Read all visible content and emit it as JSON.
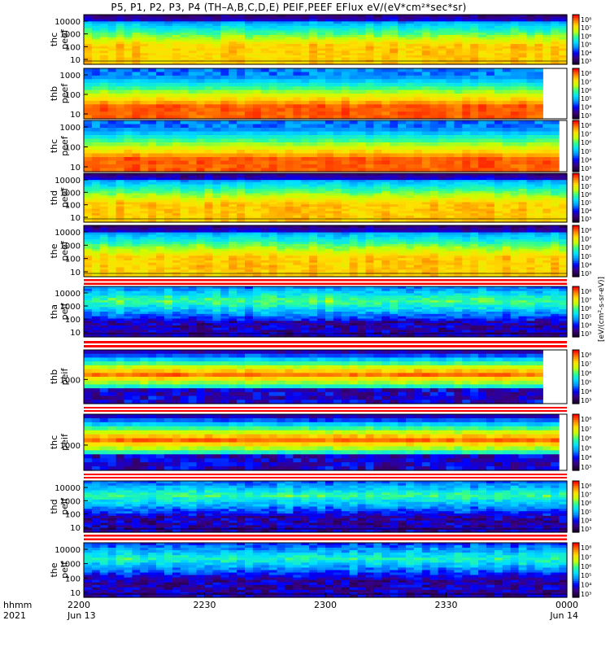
{
  "title": "P5, P1, P2, P3, P4 (TH–A,B,C,D,E) PEIF,PEEF EFlux eV/(eV*cm²*sec*sr)",
  "xaxis": {
    "row1_label": "hhmm",
    "row2_label": "2021",
    "ticks": [
      {
        "value": "2200",
        "sub": "Jun 13"
      },
      {
        "value": "2230",
        "sub": ""
      },
      {
        "value": "2300",
        "sub": ""
      },
      {
        "value": "2330",
        "sub": ""
      },
      {
        "value": "0000",
        "sub": "Jun 14"
      }
    ]
  },
  "colorbar_units": "[eV/(cm²-s-sr-eV)]",
  "colors": {
    "scale": [
      "#1a0033",
      "#3a0080",
      "#0000ff",
      "#0090ff",
      "#00e0ff",
      "#30ff90",
      "#c8ff00",
      "#ffe000",
      "#ff8000",
      "#ff0000"
    ],
    "fill_line": "#ff0000"
  },
  "chart_data": [
    {
      "type": "heatmap",
      "probe": "thc",
      "species": "peef",
      "ylabel": [
        "thc",
        "peef"
      ],
      "yticks": [
        "10000",
        "1000",
        "100",
        "10"
      ],
      "cbar_ticks": [
        "10⁸",
        "10⁷",
        "10⁶",
        "10⁵",
        "10⁴",
        "10³"
      ],
      "trend": "electron",
      "level": 0.88
    },
    {
      "type": "heatmap",
      "probe": "thb",
      "species": "peef",
      "ylabel": [
        "thb",
        "peef"
      ],
      "yticks": [
        "1000",
        "100",
        "10"
      ],
      "cbar_ticks": [
        "10⁸",
        "10⁷",
        "10⁶",
        "10⁵",
        "10⁴",
        "10³"
      ],
      "trend": "banded-e",
      "level": 0.92
    },
    {
      "type": "heatmap",
      "probe": "thc",
      "species": "peef",
      "ylabel": [
        "thc",
        "peef"
      ],
      "yticks": [
        "1000",
        "100",
        "10"
      ],
      "cbar_ticks": [
        "10⁸",
        "10⁷",
        "10⁶",
        "10⁵",
        "10⁴",
        "10³"
      ],
      "trend": "banded-e",
      "level": 0.88
    },
    {
      "type": "heatmap",
      "probe": "thd",
      "species": "peef",
      "ylabel": [
        "thd",
        "peef"
      ],
      "yticks": [
        "10000",
        "1000",
        "100",
        "10"
      ],
      "cbar_ticks": [
        "10⁸",
        "10⁷",
        "10⁶",
        "10⁵",
        "10⁴",
        "10³"
      ],
      "trend": "electron",
      "level": 0.85
    },
    {
      "type": "heatmap",
      "probe": "the",
      "species": "peef",
      "ylabel": [
        "the",
        "peef"
      ],
      "yticks": [
        "10000",
        "1000",
        "100",
        "10"
      ],
      "cbar_ticks": [
        "10⁸",
        "10⁷",
        "10⁶",
        "10⁵",
        "10⁴",
        "10³"
      ],
      "trend": "electron",
      "level": 0.83
    },
    {
      "type": "heatmap",
      "probe": "tha",
      "species": "peif",
      "ylabel": [
        "tha",
        "peif"
      ],
      "yticks": [
        "10000",
        "1000",
        "100",
        "10"
      ],
      "cbar_ticks": [
        "10⁸",
        "10⁷",
        "10⁶",
        "10⁵",
        "10⁴",
        "10³"
      ],
      "trend": "ion",
      "level": 0.58
    },
    {
      "type": "heatmap",
      "probe": "thb",
      "species": "peif",
      "ylabel": [
        "thb",
        "peif"
      ],
      "yticks": [
        "1000"
      ],
      "cbar_ticks": [
        "10⁸",
        "10⁷",
        "10⁶",
        "10⁵",
        "10⁴",
        "10³"
      ],
      "trend": "banded-i",
      "level": 0.75
    },
    {
      "type": "heatmap",
      "probe": "thc",
      "species": "peif",
      "ylabel": [
        "thc",
        "peif"
      ],
      "yticks": [
        "1000"
      ],
      "cbar_ticks": [
        "10⁸",
        "10⁷",
        "10⁶",
        "10⁵",
        "10⁴",
        "10³"
      ],
      "trend": "banded-i",
      "level": 0.72
    },
    {
      "type": "heatmap",
      "probe": "thd",
      "species": "peif",
      "ylabel": [
        "thd",
        "peif"
      ],
      "yticks": [
        "10000",
        "1000",
        "100",
        "10"
      ],
      "cbar_ticks": [
        "10⁸",
        "10⁷",
        "10⁶",
        "10⁵",
        "10⁴",
        "10³"
      ],
      "trend": "ion",
      "level": 0.55
    },
    {
      "type": "heatmap",
      "probe": "the",
      "species": "peif",
      "ylabel": [
        "the",
        "peif"
      ],
      "yticks": [
        "10000",
        "1000",
        "100",
        "10"
      ],
      "cbar_ticks": [
        "10⁸",
        "10⁷",
        "10⁶",
        "10⁵",
        "10⁴",
        "10³"
      ],
      "trend": "ion",
      "level": 0.52
    }
  ]
}
